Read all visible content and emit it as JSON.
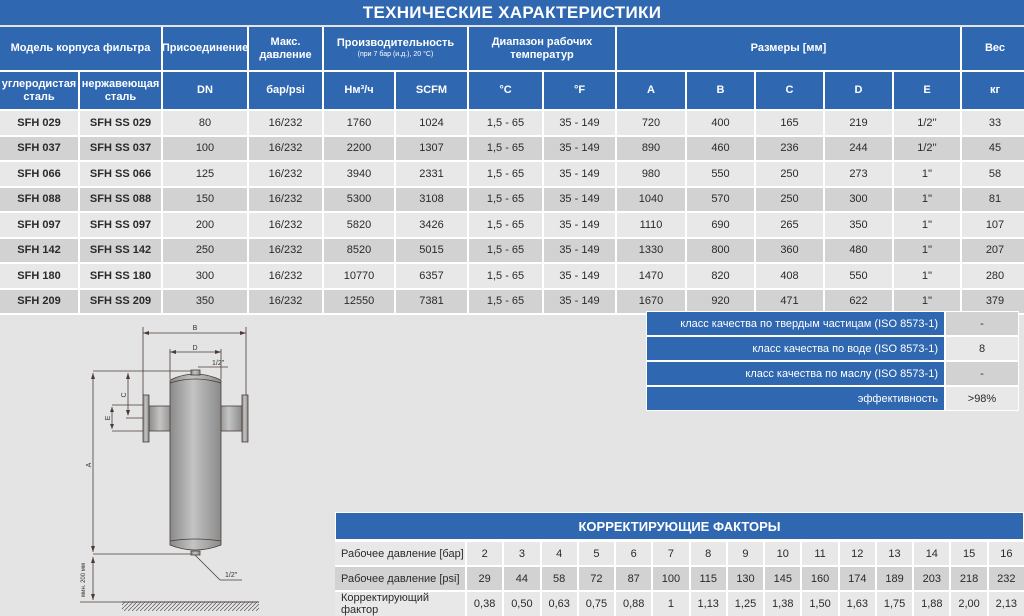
{
  "title": "ТЕХНИЧЕСКИЕ ХАРАКТЕРИСТИКИ",
  "header": {
    "model": "Модель корпуса фильтра",
    "connection": "Присоединение",
    "max_pressure": "Макс. давление",
    "capacity": "Производительность",
    "capacity_note": "(при 7 бар (и.д.), 20 °C)",
    "temp_range": "Диапазон рабочих температур",
    "dimensions": "Размеры [мм]",
    "weight": "Вес",
    "sub": [
      "углеродистая сталь",
      "нержавеющая сталь",
      "DN",
      "бар/psi",
      "Нм³/ч",
      "SCFM",
      "°C",
      "°F",
      "A",
      "B",
      "C",
      "D",
      "E",
      "кг"
    ]
  },
  "rows": [
    [
      "SFH 029",
      "SFH SS 029",
      "80",
      "16/232",
      "1760",
      "1024",
      "1,5 - 65",
      "35 - 149",
      "720",
      "400",
      "165",
      "219",
      "1/2''",
      "33"
    ],
    [
      "SFH 037",
      "SFH SS 037",
      "100",
      "16/232",
      "2200",
      "1307",
      "1,5 - 65",
      "35 - 149",
      "890",
      "460",
      "236",
      "244",
      "1/2''",
      "45"
    ],
    [
      "SFH 066",
      "SFH SS 066",
      "125",
      "16/232",
      "3940",
      "2331",
      "1,5 - 65",
      "35 - 149",
      "980",
      "550",
      "250",
      "273",
      "1''",
      "58"
    ],
    [
      "SFH 088",
      "SFH SS 088",
      "150",
      "16/232",
      "5300",
      "3108",
      "1,5 - 65",
      "35 - 149",
      "1040",
      "570",
      "250",
      "300",
      "1''",
      "81"
    ],
    [
      "SFH 097",
      "SFH SS 097",
      "200",
      "16/232",
      "5820",
      "3426",
      "1,5 - 65",
      "35 - 149",
      "1110",
      "690",
      "265",
      "350",
      "1''",
      "107"
    ],
    [
      "SFH 142",
      "SFH SS 142",
      "250",
      "16/232",
      "8520",
      "5015",
      "1,5 - 65",
      "35 - 149",
      "1330",
      "800",
      "360",
      "480",
      "1''",
      "207"
    ],
    [
      "SFH 180",
      "SFH SS 180",
      "300",
      "16/232",
      "10770",
      "6357",
      "1,5 - 65",
      "35 - 149",
      "1470",
      "820",
      "408",
      "550",
      "1''",
      "280"
    ],
    [
      "SFH 209",
      "SFH SS 209",
      "350",
      "16/232",
      "12550",
      "7381",
      "1,5 - 65",
      "35 - 149",
      "1670",
      "920",
      "471",
      "622",
      "1''",
      "379"
    ]
  ],
  "quality": [
    {
      "label": "класс качества по твердым частицам (ISO 8573-1)",
      "value": "-"
    },
    {
      "label": "класс качества по воде (ISO 8573-1)",
      "value": "8"
    },
    {
      "label": "класс качества по маслу (ISO 8573-1)",
      "value": "-"
    },
    {
      "label": "эффективность",
      "value": ">98%"
    }
  ],
  "correction": {
    "title": "КОРРЕКТИРУЮЩИЕ ФАКТОРЫ",
    "rows": [
      {
        "label": "Рабочее давление [бар]",
        "values": [
          "2",
          "3",
          "4",
          "5",
          "6",
          "7",
          "8",
          "9",
          "10",
          "11",
          "12",
          "13",
          "14",
          "15",
          "16"
        ]
      },
      {
        "label": "Рабочее давление [psi]",
        "values": [
          "29",
          "44",
          "58",
          "72",
          "87",
          "100",
          "115",
          "130",
          "145",
          "160",
          "174",
          "189",
          "203",
          "218",
          "232"
        ]
      },
      {
        "label": "Корректирующий фактор",
        "values": [
          "0,38",
          "0,50",
          "0,63",
          "0,75",
          "0,88",
          "1",
          "1,13",
          "1,25",
          "1,38",
          "1,50",
          "1,63",
          "1,75",
          "1,88",
          "2,00",
          "2,13"
        ]
      }
    ]
  },
  "diagram": {
    "a": "A",
    "b": "B",
    "c": "C",
    "d": "D",
    "e": "E",
    "top_port": "1/2\"",
    "bottom_port": "1/2\"",
    "min_clearance": "мин. 200 мм"
  },
  "colors": {
    "header_blue": "#2f67b1",
    "row_light": "#e8e8e8",
    "row_dark": "#d2d2d2"
  }
}
